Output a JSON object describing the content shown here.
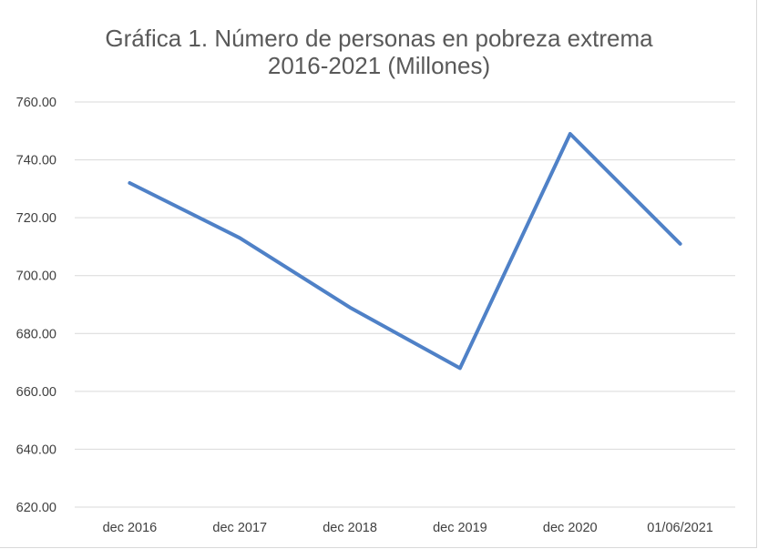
{
  "chart_data": {
    "type": "line",
    "title": "Gráfica 1. Número de personas en pobreza extrema",
    "subtitle": "2016-2021 (Millones)",
    "categories": [
      "dec 2016",
      "dec 2017",
      "dec 2018",
      "dec 2019",
      "dec 2020",
      "01/06/2021"
    ],
    "series": [
      {
        "values": [
          732,
          713,
          689,
          668,
          749,
          711
        ]
      }
    ],
    "ylim": [
      620,
      760
    ],
    "y_ticks": [
      "620.00",
      "640.00",
      "660.00",
      "680.00",
      "700.00",
      "720.00",
      "740.00",
      "760.00"
    ],
    "y_tick_values": [
      620,
      640,
      660,
      680,
      700,
      720,
      740,
      760
    ],
    "grid": true,
    "line_color": "#4f81c7",
    "grid_color": "#d9d9d9"
  }
}
